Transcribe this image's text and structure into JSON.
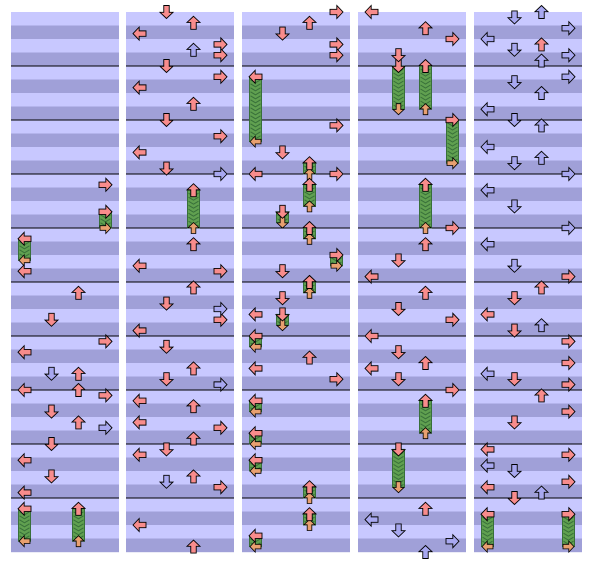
{
  "title": "",
  "colors": {
    "background": "#ffffff",
    "lane_light": "#c8c8ff",
    "lane_dark": "#a0a0d8",
    "measure_line": "#000000",
    "arrow_red": "#f88c8c",
    "arrow_blue": "#a8a8f0",
    "arrow_outline": "#000000",
    "hold_body": "#60a050",
    "hold_stripe": "#38703a",
    "hold_end": "#e8a070"
  },
  "icons": {
    "left": "left-arrow-icon",
    "down": "down-arrow-icon",
    "up": "up-arrow-icon",
    "right": "right-arrow-icon"
  },
  "chart_data": {
    "type": "step-chart",
    "columns": 5,
    "measures_per_column": 10,
    "rows_per_measure": 4,
    "lanes": [
      "left",
      "down",
      "up",
      "right"
    ],
    "note_colors": [
      "red",
      "blue"
    ],
    "columns_data": [
      {
        "holds": [
          {
            "lane": "right",
            "start": 37,
            "end": 40
          },
          {
            "lane": "left",
            "start": 42,
            "end": 46
          },
          {
            "lane": "left",
            "start": 92,
            "end": 98
          },
          {
            "lane": "up",
            "start": 92,
            "end": 98
          }
        ],
        "notes": [
          {
            "lane": "right",
            "pos": 32,
            "color": "red"
          },
          {
            "lane": "left",
            "pos": 48,
            "color": "red"
          },
          {
            "lane": "up",
            "pos": 52,
            "color": "red"
          },
          {
            "lane": "down",
            "pos": 57,
            "color": "red"
          },
          {
            "lane": "right",
            "pos": 61,
            "color": "red"
          },
          {
            "lane": "left",
            "pos": 63,
            "color": "red"
          },
          {
            "lane": "down",
            "pos": 67,
            "color": "blue"
          },
          {
            "lane": "up",
            "pos": 67,
            "color": "red"
          },
          {
            "lane": "left",
            "pos": 70,
            "color": "red"
          },
          {
            "lane": "up",
            "pos": 70,
            "color": "red"
          },
          {
            "lane": "right",
            "pos": 71,
            "color": "red"
          },
          {
            "lane": "down",
            "pos": 74,
            "color": "red"
          },
          {
            "lane": "up",
            "pos": 76,
            "color": "red"
          },
          {
            "lane": "right",
            "pos": 77,
            "color": "blue"
          },
          {
            "lane": "down",
            "pos": 80,
            "color": "red"
          },
          {
            "lane": "left",
            "pos": 83,
            "color": "red"
          },
          {
            "lane": "down",
            "pos": 86,
            "color": "red"
          },
          {
            "lane": "left",
            "pos": 89,
            "color": "red"
          }
        ]
      },
      {
        "holds": [
          {
            "lane": "up",
            "start": 33,
            "end": 40
          }
        ],
        "notes": [
          {
            "lane": "down",
            "pos": 0,
            "color": "red"
          },
          {
            "lane": "up",
            "pos": 2,
            "color": "red"
          },
          {
            "lane": "left",
            "pos": 4,
            "color": "red"
          },
          {
            "lane": "right",
            "pos": 6,
            "color": "red"
          },
          {
            "lane": "up",
            "pos": 7,
            "color": "blue"
          },
          {
            "lane": "right",
            "pos": 8,
            "color": "red"
          },
          {
            "lane": "down",
            "pos": 10,
            "color": "red"
          },
          {
            "lane": "right",
            "pos": 12,
            "color": "red"
          },
          {
            "lane": "left",
            "pos": 14,
            "color": "red"
          },
          {
            "lane": "up",
            "pos": 17,
            "color": "red"
          },
          {
            "lane": "down",
            "pos": 20,
            "color": "red"
          },
          {
            "lane": "right",
            "pos": 23,
            "color": "red"
          },
          {
            "lane": "left",
            "pos": 26,
            "color": "red"
          },
          {
            "lane": "down",
            "pos": 29,
            "color": "red"
          },
          {
            "lane": "right",
            "pos": 30,
            "color": "blue"
          },
          {
            "lane": "up",
            "pos": 43,
            "color": "red"
          },
          {
            "lane": "left",
            "pos": 47,
            "color": "red"
          },
          {
            "lane": "right",
            "pos": 48,
            "color": "red"
          },
          {
            "lane": "up",
            "pos": 51,
            "color": "red"
          },
          {
            "lane": "down",
            "pos": 54,
            "color": "red"
          },
          {
            "lane": "right",
            "pos": 57,
            "color": "red"
          },
          {
            "lane": "left",
            "pos": 59,
            "color": "red"
          },
          {
            "lane": "right",
            "pos": 55,
            "color": "blue"
          },
          {
            "lane": "down",
            "pos": 62,
            "color": "red"
          },
          {
            "lane": "up",
            "pos": 66,
            "color": "red"
          },
          {
            "lane": "down",
            "pos": 68,
            "color": "red"
          },
          {
            "lane": "right",
            "pos": 69,
            "color": "blue"
          },
          {
            "lane": "left",
            "pos": 72,
            "color": "red"
          },
          {
            "lane": "up",
            "pos": 73,
            "color": "red"
          },
          {
            "lane": "left",
            "pos": 76,
            "color": "red"
          },
          {
            "lane": "right",
            "pos": 77,
            "color": "red"
          },
          {
            "lane": "up",
            "pos": 79,
            "color": "red"
          },
          {
            "lane": "down",
            "pos": 81,
            "color": "red"
          },
          {
            "lane": "left",
            "pos": 82,
            "color": "red"
          },
          {
            "lane": "up",
            "pos": 86,
            "color": "red"
          },
          {
            "lane": "down",
            "pos": 87,
            "color": "blue"
          },
          {
            "lane": "right",
            "pos": 88,
            "color": "red"
          },
          {
            "lane": "left",
            "pos": 95,
            "color": "red"
          },
          {
            "lane": "up",
            "pos": 99,
            "color": "red"
          }
        ]
      },
      {
        "holds": [
          {
            "lane": "left",
            "start": 12,
            "end": 24
          },
          {
            "lane": "up",
            "start": 28,
            "end": 30
          },
          {
            "lane": "up",
            "start": 32,
            "end": 36
          },
          {
            "lane": "down",
            "start": 37,
            "end": 39
          },
          {
            "lane": "up",
            "start": 40,
            "end": 42
          },
          {
            "lane": "right",
            "start": 45,
            "end": 47
          },
          {
            "lane": "up",
            "start": 50,
            "end": 52
          },
          {
            "lane": "down",
            "start": 56,
            "end": 58
          },
          {
            "lane": "left",
            "start": 60,
            "end": 62
          },
          {
            "lane": "left",
            "start": 72,
            "end": 74
          },
          {
            "lane": "left",
            "start": 78,
            "end": 80
          },
          {
            "lane": "left",
            "start": 83,
            "end": 85
          },
          {
            "lane": "up",
            "start": 88,
            "end": 90
          },
          {
            "lane": "up",
            "start": 93,
            "end": 95
          },
          {
            "lane": "left",
            "start": 97,
            "end": 99
          }
        ],
        "notes": [
          {
            "lane": "right",
            "pos": 0,
            "color": "red"
          },
          {
            "lane": "up",
            "pos": 2,
            "color": "red"
          },
          {
            "lane": "down",
            "pos": 4,
            "color": "red"
          },
          {
            "lane": "right",
            "pos": 6,
            "color": "red"
          },
          {
            "lane": "right",
            "pos": 8,
            "color": "red"
          },
          {
            "lane": "right",
            "pos": 21,
            "color": "red"
          },
          {
            "lane": "down",
            "pos": 26,
            "color": "red"
          },
          {
            "lane": "left",
            "pos": 30,
            "color": "red"
          },
          {
            "lane": "right",
            "pos": 30,
            "color": "red"
          },
          {
            "lane": "down",
            "pos": 48,
            "color": "red"
          },
          {
            "lane": "up",
            "pos": 50,
            "color": "red"
          },
          {
            "lane": "down",
            "pos": 53,
            "color": "red"
          },
          {
            "lane": "left",
            "pos": 56,
            "color": "red"
          },
          {
            "lane": "up",
            "pos": 64,
            "color": "red"
          },
          {
            "lane": "left",
            "pos": 66,
            "color": "red"
          },
          {
            "lane": "right",
            "pos": 68,
            "color": "red"
          }
        ]
      },
      {
        "holds": [
          {
            "lane": "down",
            "start": 10,
            "end": 18
          },
          {
            "lane": "up",
            "start": 10,
            "end": 18
          },
          {
            "lane": "right",
            "start": 20,
            "end": 28
          },
          {
            "lane": "up",
            "start": 32,
            "end": 40
          },
          {
            "lane": "up",
            "start": 72,
            "end": 78
          },
          {
            "lane": "down",
            "start": 81,
            "end": 88
          }
        ],
        "notes": [
          {
            "lane": "left",
            "pos": 0,
            "color": "red"
          },
          {
            "lane": "up",
            "pos": 3,
            "color": "red"
          },
          {
            "lane": "right",
            "pos": 5,
            "color": "red"
          },
          {
            "lane": "down",
            "pos": 8,
            "color": "red"
          },
          {
            "lane": "right",
            "pos": 40,
            "color": "red"
          },
          {
            "lane": "up",
            "pos": 43,
            "color": "red"
          },
          {
            "lane": "down",
            "pos": 46,
            "color": "red"
          },
          {
            "lane": "left",
            "pos": 49,
            "color": "red"
          },
          {
            "lane": "up",
            "pos": 52,
            "color": "red"
          },
          {
            "lane": "down",
            "pos": 55,
            "color": "red"
          },
          {
            "lane": "right",
            "pos": 57,
            "color": "red"
          },
          {
            "lane": "left",
            "pos": 60,
            "color": "red"
          },
          {
            "lane": "down",
            "pos": 63,
            "color": "red"
          },
          {
            "lane": "up",
            "pos": 65,
            "color": "red"
          },
          {
            "lane": "left",
            "pos": 66,
            "color": "red"
          },
          {
            "lane": "down",
            "pos": 68,
            "color": "red"
          },
          {
            "lane": "right",
            "pos": 70,
            "color": "red"
          },
          {
            "lane": "up",
            "pos": 92,
            "color": "red"
          },
          {
            "lane": "left",
            "pos": 94,
            "color": "blue"
          },
          {
            "lane": "down",
            "pos": 96,
            "color": "blue"
          },
          {
            "lane": "right",
            "pos": 98,
            "color": "blue"
          },
          {
            "lane": "up",
            "pos": 100,
            "color": "blue"
          }
        ]
      },
      {
        "holds": [
          {
            "lane": "right",
            "start": 93,
            "end": 99
          },
          {
            "lane": "left",
            "start": 93,
            "end": 99
          }
        ],
        "notes": [
          {
            "lane": "up",
            "pos": 0,
            "color": "blue"
          },
          {
            "lane": "down",
            "pos": 1,
            "color": "blue"
          },
          {
            "lane": "right",
            "pos": 3,
            "color": "blue"
          },
          {
            "lane": "left",
            "pos": 5,
            "color": "blue"
          },
          {
            "lane": "up",
            "pos": 6,
            "color": "red"
          },
          {
            "lane": "down",
            "pos": 7,
            "color": "blue"
          },
          {
            "lane": "right",
            "pos": 8,
            "color": "blue"
          },
          {
            "lane": "up",
            "pos": 9,
            "color": "blue"
          },
          {
            "lane": "right",
            "pos": 12,
            "color": "blue"
          },
          {
            "lane": "down",
            "pos": 13,
            "color": "blue"
          },
          {
            "lane": "up",
            "pos": 15,
            "color": "blue"
          },
          {
            "lane": "left",
            "pos": 18,
            "color": "blue"
          },
          {
            "lane": "down",
            "pos": 20,
            "color": "blue"
          },
          {
            "lane": "up",
            "pos": 21,
            "color": "blue"
          },
          {
            "lane": "left",
            "pos": 25,
            "color": "blue"
          },
          {
            "lane": "up",
            "pos": 27,
            "color": "blue"
          },
          {
            "lane": "down",
            "pos": 28,
            "color": "blue"
          },
          {
            "lane": "right",
            "pos": 30,
            "color": "blue"
          },
          {
            "lane": "left",
            "pos": 33,
            "color": "blue"
          },
          {
            "lane": "down",
            "pos": 36,
            "color": "blue"
          },
          {
            "lane": "right",
            "pos": 40,
            "color": "blue"
          },
          {
            "lane": "left",
            "pos": 43,
            "color": "blue"
          },
          {
            "lane": "down",
            "pos": 47,
            "color": "blue"
          },
          {
            "lane": "right",
            "pos": 49,
            "color": "red"
          },
          {
            "lane": "up",
            "pos": 51,
            "color": "red"
          },
          {
            "lane": "down",
            "pos": 53,
            "color": "red"
          },
          {
            "lane": "left",
            "pos": 56,
            "color": "red"
          },
          {
            "lane": "up",
            "pos": 58,
            "color": "blue"
          },
          {
            "lane": "down",
            "pos": 59,
            "color": "red"
          },
          {
            "lane": "right",
            "pos": 61,
            "color": "red"
          },
          {
            "lane": "right",
            "pos": 65,
            "color": "red"
          },
          {
            "lane": "left",
            "pos": 67,
            "color": "blue"
          },
          {
            "lane": "down",
            "pos": 68,
            "color": "red"
          },
          {
            "lane": "right",
            "pos": 69,
            "color": "red"
          },
          {
            "lane": "up",
            "pos": 71,
            "color": "red"
          },
          {
            "lane": "right",
            "pos": 74,
            "color": "red"
          },
          {
            "lane": "down",
            "pos": 76,
            "color": "red"
          },
          {
            "lane": "left",
            "pos": 81,
            "color": "red"
          },
          {
            "lane": "right",
            "pos": 82,
            "color": "red"
          },
          {
            "lane": "down",
            "pos": 85,
            "color": "blue"
          },
          {
            "lane": "left",
            "pos": 84,
            "color": "blue"
          },
          {
            "lane": "right",
            "pos": 87,
            "color": "red"
          },
          {
            "lane": "up",
            "pos": 89,
            "color": "blue"
          },
          {
            "lane": "down",
            "pos": 90,
            "color": "red"
          },
          {
            "lane": "left",
            "pos": 88,
            "color": "red"
          }
        ]
      }
    ]
  }
}
